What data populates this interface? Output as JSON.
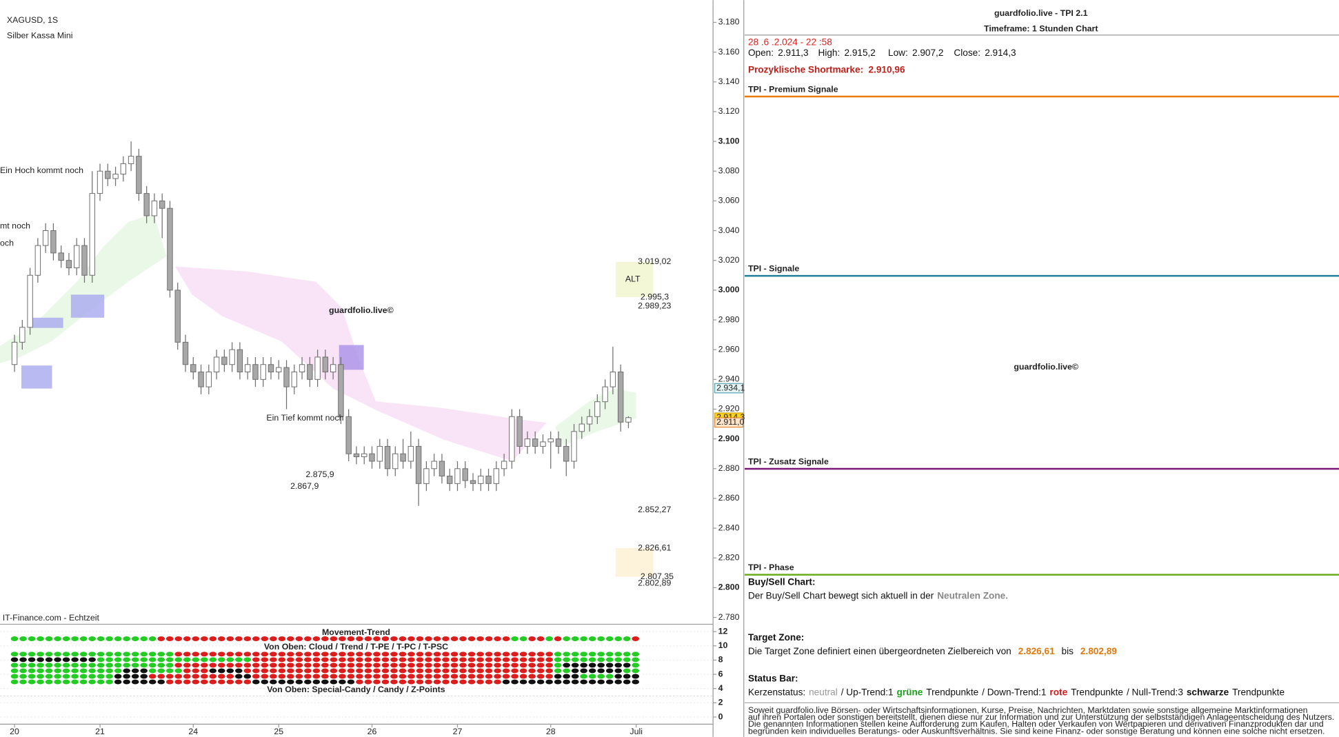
{
  "chart_data": {
    "type": "candlestick",
    "title": "XAGUSD, 1S",
    "subtitle": "Silber Kassa Mini",
    "source": "IT-Finance.com - Echtzeit",
    "watermark": "guardfolio.live©",
    "categories": [
      "20",
      null,
      null,
      null,
      null,
      null,
      null,
      null,
      null,
      null,
      null,
      "21",
      null,
      null,
      null,
      null,
      null,
      null,
      null,
      null,
      null,
      null,
      null,
      "24",
      null,
      null,
      null,
      null,
      null,
      null,
      null,
      null,
      null,
      null,
      "25",
      null,
      null,
      null,
      null,
      null,
      null,
      null,
      null,
      null,
      null,
      null,
      "26",
      null,
      null,
      null,
      null,
      null,
      null,
      null,
      null,
      null,
      null,
      "27",
      null,
      null,
      null,
      null,
      null,
      null,
      null,
      null,
      null,
      null,
      null,
      "28",
      null,
      null,
      null,
      null,
      null,
      null,
      null,
      null,
      null,
      null,
      "Juli"
    ],
    "open": [
      2950,
      2965,
      2975,
      3010,
      3030,
      3040,
      3025,
      3020,
      3015,
      3030,
      3010,
      3065,
      3080,
      3075,
      3078,
      3085,
      3090,
      3065,
      3050,
      3060,
      3055,
      3000,
      2965,
      2950,
      2945,
      2935,
      2945,
      2955,
      2950,
      2960,
      2945,
      2950,
      2940,
      2950,
      2945,
      2948,
      2935,
      2945,
      2950,
      2940,
      2955,
      2945,
      2950,
      2915,
      2890,
      2888,
      2890,
      2885,
      2895,
      2880,
      2890,
      2885,
      2895,
      2870,
      2880,
      2885,
      2875,
      2870,
      2880,
      2872,
      2870,
      2875,
      2870,
      2880,
      2885,
      2915,
      2895,
      2900,
      2895,
      2898,
      2900,
      2895,
      2885,
      2905,
      2910,
      2915,
      2925,
      2935,
      2945,
      2911.3,
      null
    ],
    "high": [
      2970,
      2980,
      3015,
      3035,
      3045,
      3045,
      3030,
      3025,
      3035,
      3035,
      3080,
      3085,
      3085,
      3083,
      3090,
      3100,
      3095,
      3070,
      3065,
      3065,
      3060,
      3005,
      2970,
      2955,
      2950,
      2950,
      2960,
      2960,
      2965,
      2965,
      2955,
      2955,
      2955,
      2955,
      2953,
      2953,
      2950,
      2955,
      2955,
      2960,
      2960,
      2955,
      2955,
      2920,
      2895,
      2895,
      2895,
      2900,
      2900,
      2895,
      2900,
      2905,
      2900,
      2885,
      2890,
      2890,
      2880,
      2885,
      2885,
      2877,
      2880,
      2880,
      2885,
      2890,
      2920,
      2920,
      2905,
      2905,
      2903,
      2905,
      2905,
      2900,
      2910,
      2915,
      2920,
      2930,
      2940,
      2962,
      2950,
      2915.2,
      null
    ],
    "low": [
      2945,
      2960,
      2970,
      3005,
      3025,
      3020,
      3015,
      3010,
      3010,
      3005,
      3005,
      3060,
      3070,
      3070,
      3073,
      3080,
      3060,
      3045,
      3045,
      3035,
      2995,
      2960,
      2945,
      2940,
      2930,
      2930,
      2940,
      2945,
      2945,
      2940,
      2940,
      2935,
      2935,
      2940,
      2940,
      2920,
      2930,
      2940,
      2935,
      2935,
      2940,
      2940,
      2910,
      2885,
      2883,
      2883,
      2880,
      2880,
      2875,
      2875,
      2880,
      2880,
      2855,
      2865,
      2875,
      2870,
      2865,
      2865,
      2867,
      2865,
      2865,
      2865,
      2865,
      2875,
      2880,
      2890,
      2890,
      2890,
      2890,
      2880,
      2890,
      2875,
      2880,
      2900,
      2905,
      2910,
      2920,
      2930,
      2905,
      2907.2,
      null
    ],
    "close": [
      2965,
      2975,
      3010,
      3030,
      3040,
      3025,
      3020,
      3015,
      3030,
      3010,
      3065,
      3080,
      3075,
      3078,
      3085,
      3090,
      3065,
      3050,
      3060,
      3055,
      3000,
      2965,
      2950,
      2945,
      2935,
      2945,
      2955,
      2950,
      2960,
      2945,
      2950,
      2940,
      2950,
      2945,
      2948,
      2935,
      2945,
      2950,
      2940,
      2955,
      2945,
      2950,
      2915,
      2890,
      2888,
      2890,
      2885,
      2895,
      2880,
      2890,
      2885,
      2895,
      2870,
      2880,
      2885,
      2875,
      2870,
      2880,
      2872,
      2870,
      2875,
      2870,
      2880,
      2885,
      2915,
      2895,
      2900,
      2895,
      2898,
      2900,
      2895,
      2885,
      2905,
      2910,
      2915,
      2925,
      2935,
      2945,
      2911.3,
      2914.3,
      null
    ],
    "up_color": "#ffffff",
    "down_color": "#a8a8a8",
    "wick_color": "#6e6e6e",
    "ylim": [
      2776,
      3195
    ],
    "yticks": [
      {
        "value": 3180,
        "label": "3.180"
      },
      {
        "value": 3160,
        "label": "3.160"
      },
      {
        "value": 3140,
        "label": "3.140"
      },
      {
        "value": 3120,
        "label": "3.120"
      },
      {
        "value": 3100,
        "label": "3.100"
      },
      {
        "value": 3080,
        "label": "3.080"
      },
      {
        "value": 3060,
        "label": "3.060"
      },
      {
        "value": 3040,
        "label": "3.040"
      },
      {
        "value": 3020,
        "label": "3.020"
      },
      {
        "value": 3000,
        "label": "3.000"
      },
      {
        "value": 2980,
        "label": "2.980"
      },
      {
        "value": 2960,
        "label": "2.960"
      },
      {
        "value": 2940,
        "label": "2.940"
      },
      {
        "value": 2920,
        "label": "2.920"
      },
      {
        "value": 2900,
        "label": "2.900"
      },
      {
        "value": 2880,
        "label": "2.880"
      },
      {
        "value": 2860,
        "label": "2.860"
      },
      {
        "value": 2840,
        "label": "2.840"
      },
      {
        "value": 2820,
        "label": "2.820"
      },
      {
        "value": 2800,
        "label": "2.800"
      },
      {
        "value": 2780,
        "label": "2.780"
      }
    ],
    "zones": [
      {
        "high": 3019.02,
        "high_label": "3.019,02",
        "low": 2995.3,
        "low_label": "2.995,3",
        "label": "ALT",
        "color": "#f3f7d6"
      },
      {
        "high": 2826.61,
        "high_label": "2.826,61",
        "low": 2807.35,
        "low_label": "2.807,35",
        "color": "#fdf2da"
      }
    ],
    "levels": [
      {
        "value": 2989.23,
        "label": "2.989,23",
        "color": "#e070d0"
      },
      {
        "value": 2852.27,
        "label": "2.852,27",
        "color": "#e070d0"
      },
      {
        "value": 2802.89,
        "label": "2.802,89",
        "color": "#999999"
      },
      {
        "value": 2875.9,
        "label": "2.875,9",
        "color": "#bbbbbb"
      },
      {
        "value": 2867.9,
        "label": "2.867,9",
        "color": "#bbbbbb"
      }
    ],
    "price_markers": [
      {
        "value": 2934.1,
        "label": "2.934,1",
        "color": "#e6f4f6",
        "border": "#3a8fa0"
      },
      {
        "value": 2914.3,
        "label": "2.914,3",
        "color": "#ffd21a",
        "border": "#c99a00"
      },
      {
        "value": 2911.0,
        "label": "2.911,0",
        "color": "#fde3c8",
        "border": "#e07820"
      }
    ],
    "annotations": [
      {
        "text": "Ein Hoch kommt noch"
      },
      {
        "text": "mt noch"
      },
      {
        "text": "och"
      },
      {
        "text": "Ein Tief kommt noch"
      }
    ]
  },
  "trend_panel": {
    "title": "Movement-Trend",
    "subtitle_top": "Von Oben: Cloud / Trend / T-PE / T-PC / T-PSC",
    "subtitle_bottom": "Von Oben: Special-Candy / Candy / Z-Points",
    "ylim": [
      -1,
      12.8
    ],
    "yticks": [
      12,
      10,
      8,
      6,
      4,
      2,
      0
    ],
    "colors": {
      "g": "#22cc22",
      "r": "#dd1c1c",
      "k": "#111111"
    },
    "rows": [
      "gggggggggggggggggrrrrrrrrrrrrrrrrrrrrrrrrrrrrrrrrrrrrrrrrrggrrgrggggggggr",
      "gggggggggggggggggggrrrrrrrrrrrrrrrrrrrrrrrrrrrrrrrrrrrrrrrrrrrrgggggggggg",
      "kkkkkkkkkkggggggggggggggggggrrrrrrrrrrrrrrrrrrrrrrrrrrrrrrrrrrrgggggggggg",
      "gggggggggggggggggggrrrrrrrrrrrrrrrrrrrrrrrrrrrrrrrrrrrrrrrrrrrrgkkkkkkkkg",
      "gggggggggggggkkkggggrrrkkkkrrrrrrrrrrrrrrrrrrrrrrrrrrrrrrrrrrrrggkkkkkkgg",
      "ggggggggggggkkkkrrrrrrrrrrkkrrrrrrrrrrrrrrrrrrrrrrrrrrrrrrrrrrrkkkggggkkk",
      "ggggggggggggkkkkkkrrrrrrrrrrkkkkkkkkkkkkrrrrrrrrrrrrrrrrrkkkkkkkkkkkkkkkk"
    ]
  },
  "info_panel": {
    "title": "guardfolio.live - TPI 2.1",
    "timeframe": "Timeframe: 1 Stunden Chart",
    "datetime": "28 .6 .2.024  - 22 :58",
    "ohlc": [
      {
        "label": "Open:",
        "value": "2.911,3"
      },
      {
        "label": "High:",
        "value": "2.915,2"
      },
      {
        "label": "Low:",
        "value": "2.907,2"
      },
      {
        "label": "Close:",
        "value": "2.914,3"
      }
    ],
    "short_mark_label": "Prozyklische Shortmarke:",
    "short_mark": "2.910,96",
    "sections": [
      {
        "title": "TPI - Premium Signale",
        "color": "#ee7a0a"
      },
      {
        "title": "TPI - Signale",
        "color": "#1f7f98"
      },
      {
        "title": "TPI - Zusatz Signale",
        "color": "#7a1678"
      },
      {
        "title": "TPI - Phase",
        "color": "#6aab1c"
      }
    ],
    "watermark": "guardfolio.live©",
    "buy_sell": {
      "heading": "Buy/Sell Chart:",
      "text": "Der Buy/Sell Chart bewegt sich aktuell in der",
      "zone": "Neutralen Zone."
    },
    "target": {
      "heading": "Target Zone:",
      "text": "Die Target Zone definiert einen übergeordneten Zielbereich von",
      "from": "2.826,61",
      "between": "bis",
      "to": "2.802,89"
    },
    "status": {
      "heading": "Status Bar:",
      "parts": [
        "Kerzenstatus:",
        "neutral",
        "/ Up-Trend:1",
        "grüne",
        "Trendpunkte",
        "/ Down-Trend:1",
        "rote",
        "Trendpunkte",
        "/ Null-Trend:3",
        "schwarze",
        "Trendpunkte"
      ]
    },
    "disclaimer": [
      "Soweit guardfolio.live Börsen- oder Wirtschaftsinformationen, Kurse, Preise, Nachrichten, Marktdaten sowie sonstige allgemeine Marktinformationen",
      "auf ihren Portalen oder sonstigen bereitstellt, dienen diese nur zur Information und zur Unterstützung der selbstständigen Anlageentscheidung des Nutzers.",
      "Die genannten Informationen stellen keine Aufforderung zum Kaufen, Halten oder Verkaufen von Wertpapieren und derivativen Finanzprodukten dar und",
      "begründen kein individuelles Beratungs- oder Auskunftsverhältnis. Sie sind keine Finanz- oder sonstige Beratung und können eine solche nicht ersetzen."
    ]
  }
}
